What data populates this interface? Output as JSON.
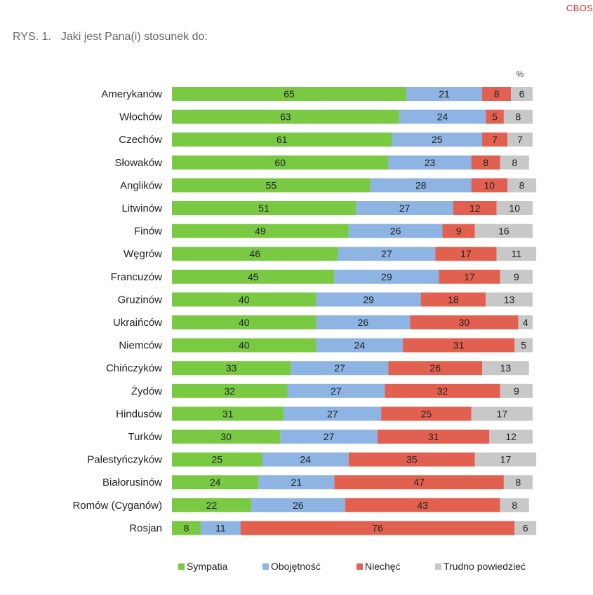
{
  "header": {
    "brand": "CBOS",
    "figure_number": "RYS. 1.",
    "figure_title": "Jaki jest Pana(i) stosunek do:"
  },
  "colors": {
    "Sympatia": "#7ac943",
    "Obojętność": "#8db4e2",
    "Niechęć": "#e2604f",
    "Trudno powiedzieć": "#c8c8c8"
  },
  "chart_data": {
    "type": "bar",
    "orientation": "horizontal",
    "stacked": true,
    "unit_label": "%",
    "xlim": [
      0,
      100
    ],
    "grid": false,
    "legend_position": "bottom",
    "categories": [
      "Amerykanów",
      "Włochów",
      "Czechów",
      "Słowaków",
      "Anglików",
      "Litwinów",
      "Finów",
      "Węgrów",
      "Francuzów",
      "Gruzinów",
      "Ukraińców",
      "Niemców",
      "Chińczyków",
      "Żydów",
      "Hindusów",
      "Turków",
      "Palestyńczyków",
      "Białorusinów",
      "Romów (Cyganów)",
      "Rosjan"
    ],
    "series": [
      {
        "name": "Sympatia",
        "values": [
          65,
          63,
          61,
          60,
          55,
          51,
          49,
          46,
          45,
          40,
          40,
          40,
          33,
          32,
          31,
          30,
          25,
          24,
          22,
          8
        ]
      },
      {
        "name": "Obojętność",
        "values": [
          21,
          24,
          25,
          23,
          28,
          27,
          26,
          27,
          29,
          29,
          26,
          24,
          27,
          27,
          27,
          27,
          24,
          21,
          26,
          11
        ]
      },
      {
        "name": "Niechęć",
        "values": [
          8,
          5,
          7,
          8,
          10,
          12,
          9,
          17,
          17,
          18,
          30,
          31,
          26,
          32,
          25,
          31,
          35,
          47,
          43,
          76
        ]
      },
      {
        "name": "Trudno powiedzieć",
        "values": [
          6,
          8,
          7,
          8,
          8,
          10,
          16,
          11,
          9,
          13,
          4,
          5,
          13,
          9,
          17,
          12,
          17,
          8,
          8,
          6
        ]
      }
    ]
  }
}
